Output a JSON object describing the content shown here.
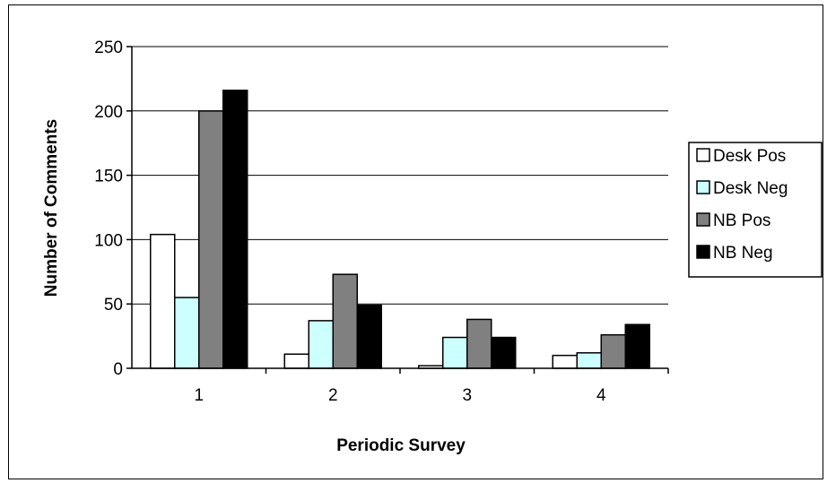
{
  "chart_data": {
    "type": "bar",
    "categories": [
      "1",
      "2",
      "3",
      "4"
    ],
    "series": [
      {
        "name": "Desk Pos",
        "color": "#ffffff",
        "values": [
          104,
          11,
          2,
          10
        ]
      },
      {
        "name": "Desk Neg",
        "color": "#ccffff",
        "values": [
          55,
          37,
          24,
          12
        ]
      },
      {
        "name": "NB Pos",
        "color": "#808080",
        "values": [
          200,
          73,
          38,
          26
        ]
      },
      {
        "name": "NB Neg",
        "color": "#000000",
        "values": [
          216,
          49,
          24,
          34
        ]
      }
    ],
    "yticks": [
      "0",
      "50",
      "100",
      "150",
      "200",
      "250"
    ],
    "ylim": [
      0,
      250
    ],
    "xlabel": "Periodic Survey",
    "ylabel": "Number of Comments",
    "grid": true,
    "legend_position": "right"
  }
}
